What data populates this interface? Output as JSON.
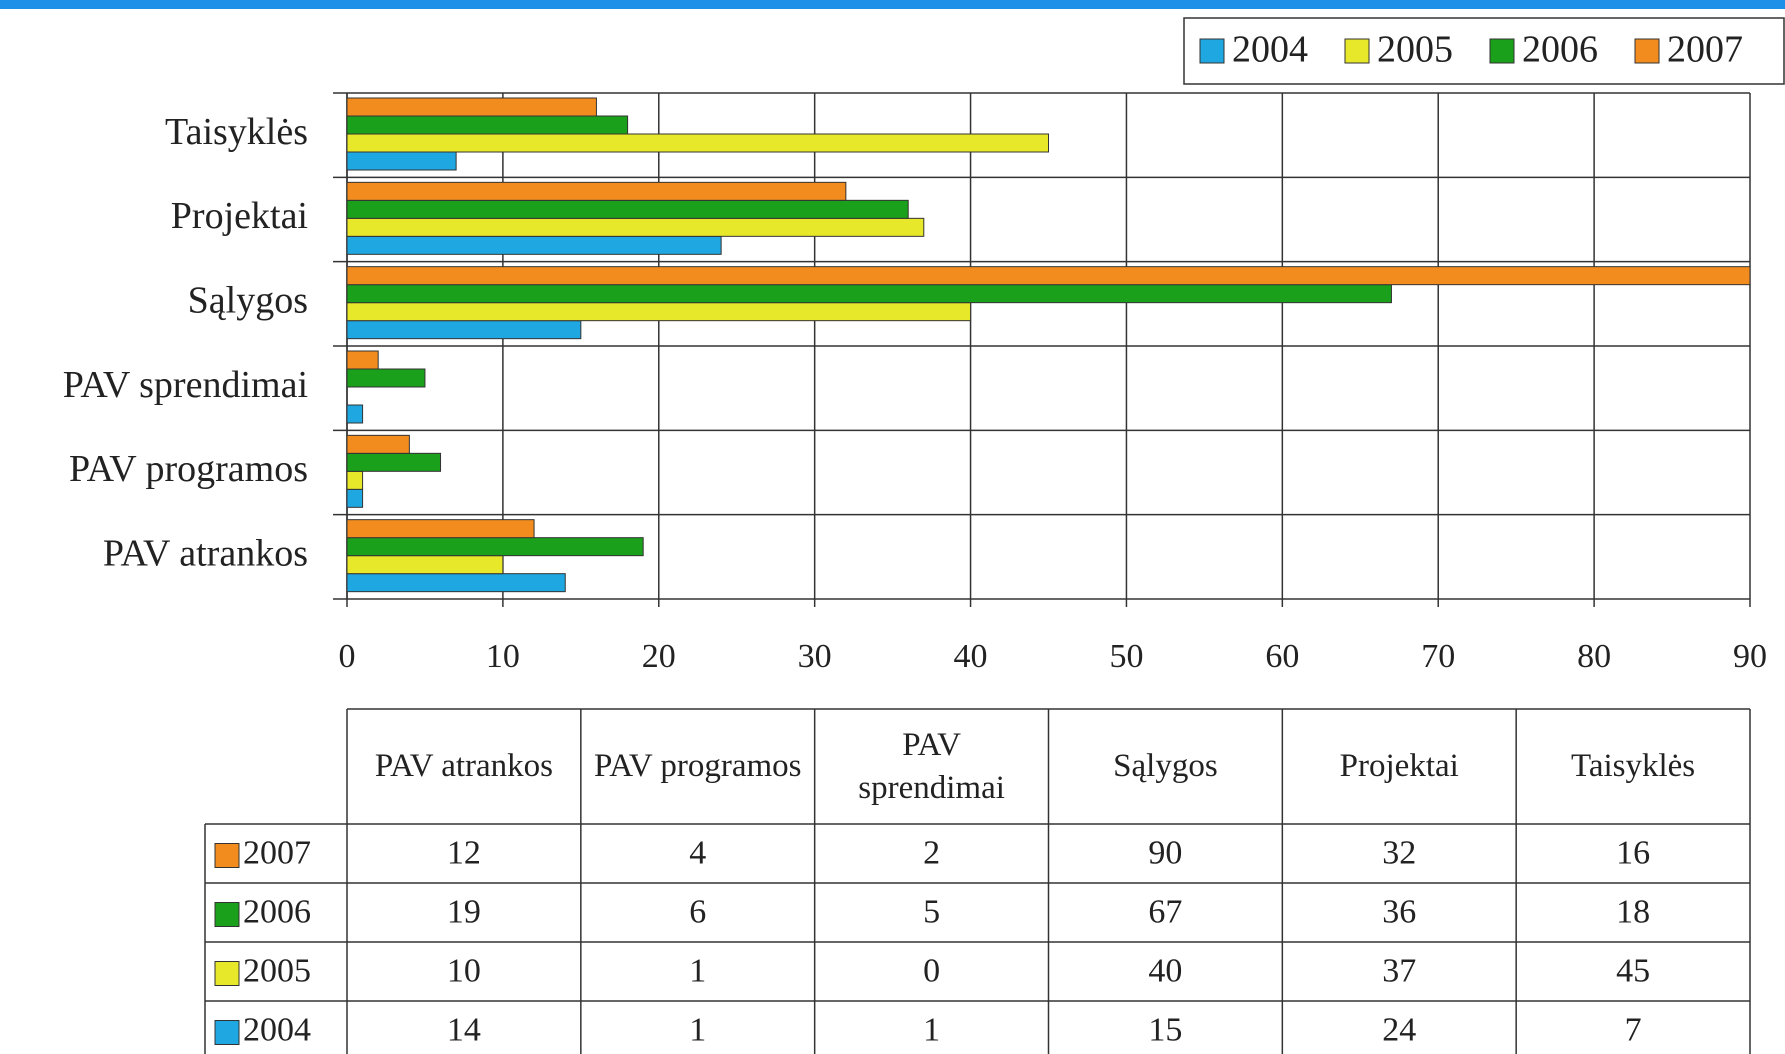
{
  "chart_data": {
    "type": "bar",
    "orientation": "horizontal",
    "categories": [
      "PAV atrankos",
      "PAV programos",
      "PAV sprendimai",
      "Sąlygos",
      "Projektai",
      "Taisyklės"
    ],
    "series": [
      {
        "name": "2004",
        "color": "#1ea7e0",
        "values": [
          14,
          1,
          1,
          15,
          24,
          7
        ]
      },
      {
        "name": "2005",
        "color": "#e8e82a",
        "values": [
          10,
          1,
          0,
          40,
          37,
          45
        ]
      },
      {
        "name": "2006",
        "color": "#1aa01a",
        "values": [
          19,
          6,
          5,
          67,
          36,
          18
        ]
      },
      {
        "name": "2007",
        "color": "#f28c1e",
        "values": [
          12,
          4,
          2,
          90,
          32,
          16
        ]
      }
    ],
    "xlim": [
      0,
      90
    ],
    "xticks": [
      0,
      10,
      20,
      30,
      40,
      50,
      60,
      70,
      80,
      90
    ],
    "grid": true,
    "legend": "top-right",
    "data_table": true
  }
}
